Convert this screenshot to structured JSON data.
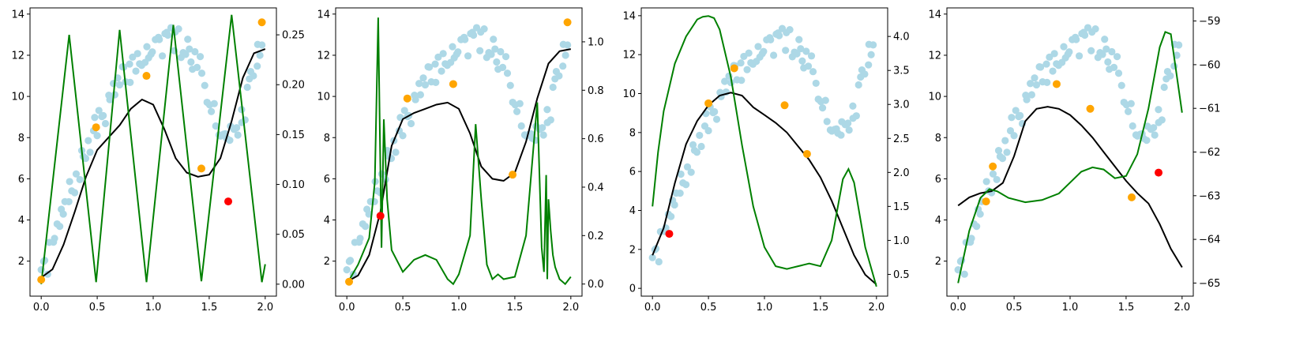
{
  "colors": {
    "observed_points": "#add8e6",
    "selected_points": "#ffa500",
    "next_point": "#ff0000",
    "mean_curve": "#000000",
    "acquisition_curve": "#008000"
  },
  "chart_data": [
    {
      "type": "scatter+line",
      "xlim": [
        -0.1,
        2.1
      ],
      "xticks": [
        0.0,
        0.5,
        1.0,
        1.5,
        2.0
      ],
      "xtick_labels": [
        "0.0",
        "0.5",
        "1.0",
        "1.5",
        "2.0"
      ],
      "ylim": [
        0.3,
        14.3
      ],
      "yticks": [
        2,
        4,
        6,
        8,
        10,
        12,
        14
      ],
      "ytick_labels": [
        "2",
        "4",
        "6",
        "8",
        "10",
        "12",
        "14"
      ],
      "y2lim": [
        -0.012,
        0.277
      ],
      "y2ticks": [
        0.0,
        0.05,
        0.1,
        0.15,
        0.2,
        0.25
      ],
      "y2tick_labels": [
        "0.00",
        "0.05",
        "0.10",
        "0.15",
        "0.20",
        "0.25"
      ],
      "orange_points": {
        "x": [
          0.0,
          0.49,
          0.94,
          1.43,
          1.97
        ],
        "y": [
          1.1,
          8.5,
          11.0,
          6.5,
          13.6
        ]
      },
      "red_point": {
        "x": [
          1.67
        ],
        "y": [
          4.9
        ]
      },
      "mean_curve": {
        "x": [
          0.0,
          0.1,
          0.2,
          0.3,
          0.4,
          0.5,
          0.6,
          0.7,
          0.8,
          0.9,
          1.0,
          1.1,
          1.2,
          1.3,
          1.4,
          1.5,
          1.6,
          1.7,
          1.8,
          1.9,
          2.0
        ],
        "y": [
          1.2,
          1.6,
          2.8,
          4.4,
          6.1,
          7.4,
          8.0,
          8.6,
          9.4,
          9.85,
          9.6,
          8.4,
          7.0,
          6.3,
          6.1,
          6.2,
          7.0,
          8.8,
          10.9,
          12.1,
          12.3
        ]
      },
      "acquisition_curve": {
        "x": [
          0.0,
          0.25,
          0.49,
          0.7,
          0.94,
          1.18,
          1.43,
          1.7,
          1.97,
          2.0
        ],
        "y": [
          0.0,
          0.25,
          0.002,
          0.255,
          0.002,
          0.26,
          0.003,
          0.27,
          0.002,
          0.02
        ]
      }
    },
    {
      "type": "scatter+line",
      "xlim": [
        -0.1,
        2.1
      ],
      "xticks": [
        0.0,
        0.5,
        1.0,
        1.5,
        2.0
      ],
      "xtick_labels": [
        "0.0",
        "0.5",
        "1.0",
        "1.5",
        "2.0"
      ],
      "ylim": [
        0.3,
        14.3
      ],
      "yticks": [
        2,
        4,
        6,
        8,
        10,
        12,
        14
      ],
      "ytick_labels": [
        "2",
        "4",
        "6",
        "8",
        "10",
        "12",
        "14"
      ],
      "y2lim": [
        -0.05,
        1.14
      ],
      "y2ticks": [
        0.0,
        0.2,
        0.4,
        0.6,
        0.8,
        1.0
      ],
      "y2tick_labels": [
        "0.0",
        "0.2",
        "0.4",
        "0.6",
        "0.8",
        "1.0"
      ],
      "orange_points": {
        "x": [
          0.02,
          0.54,
          0.95,
          1.48,
          1.97
        ],
        "y": [
          1.0,
          9.9,
          10.6,
          6.2,
          13.6
        ]
      },
      "red_point": {
        "x": [
          0.3
        ],
        "y": [
          4.2
        ]
      },
      "mean_curve": {
        "x": [
          0.0,
          0.1,
          0.2,
          0.3,
          0.4,
          0.5,
          0.6,
          0.7,
          0.8,
          0.9,
          1.0,
          1.1,
          1.2,
          1.3,
          1.4,
          1.5,
          1.6,
          1.7,
          1.8,
          1.9,
          2.0
        ],
        "y": [
          1.0,
          1.3,
          2.3,
          4.4,
          7.6,
          8.9,
          9.2,
          9.4,
          9.6,
          9.7,
          9.4,
          8.2,
          6.6,
          6.0,
          5.9,
          6.3,
          7.8,
          9.9,
          11.6,
          12.2,
          12.3
        ]
      },
      "acquisition_curve": {
        "x": [
          0.0,
          0.1,
          0.2,
          0.25,
          0.28,
          0.31,
          0.33,
          0.36,
          0.4,
          0.5,
          0.6,
          0.7,
          0.8,
          0.9,
          0.95,
          1.0,
          1.1,
          1.15,
          1.2,
          1.25,
          1.3,
          1.35,
          1.4,
          1.5,
          1.6,
          1.7,
          1.74,
          1.76,
          1.78,
          1.79,
          1.8,
          1.82,
          1.84,
          1.86,
          1.9,
          1.95,
          2.0
        ],
        "y": [
          0.0,
          0.08,
          0.19,
          0.42,
          1.1,
          0.15,
          0.68,
          0.35,
          0.14,
          0.05,
          0.1,
          0.12,
          0.1,
          0.02,
          0.0,
          0.04,
          0.2,
          0.66,
          0.35,
          0.08,
          0.02,
          0.04,
          0.02,
          0.03,
          0.2,
          0.75,
          0.15,
          0.05,
          0.45,
          0.02,
          0.35,
          0.22,
          0.12,
          0.07,
          0.02,
          0.0,
          0.03
        ]
      }
    },
    {
      "type": "scatter+line",
      "xlim": [
        -0.1,
        2.1
      ],
      "xticks": [
        0.0,
        0.5,
        1.0,
        1.5,
        2.0
      ],
      "xtick_labels": [
        "0.0",
        "0.5",
        "1.0",
        "1.5",
        "2.0"
      ],
      "ylim": [
        -0.4,
        14.4
      ],
      "yticks": [
        0,
        2,
        4,
        6,
        8,
        10,
        12,
        14
      ],
      "ytick_labels": [
        "0",
        "2",
        "4",
        "6",
        "8",
        "10",
        "12",
        "14"
      ],
      "y2lim": [
        0.18,
        4.42
      ],
      "y2ticks": [
        0.5,
        1.0,
        1.5,
        2.0,
        2.5,
        3.0,
        3.5,
        4.0
      ],
      "y2tick_labels": [
        "0.5",
        "1.0",
        "1.5",
        "2.0",
        "2.5",
        "3.0",
        "3.5",
        "4.0"
      ],
      "orange_points": {
        "x": [
          0.5,
          0.73,
          1.18,
          1.38
        ],
        "y": [
          9.5,
          11.3,
          9.4,
          6.9
        ]
      },
      "red_point": {
        "x": [
          0.15
        ],
        "y": [
          2.8
        ]
      },
      "mean_curve": {
        "x": [
          0.0,
          0.1,
          0.2,
          0.3,
          0.4,
          0.5,
          0.6,
          0.7,
          0.8,
          0.9,
          1.0,
          1.1,
          1.2,
          1.3,
          1.4,
          1.5,
          1.6,
          1.7,
          1.8,
          1.9,
          2.0
        ],
        "y": [
          1.7,
          3.1,
          5.4,
          7.4,
          8.6,
          9.4,
          9.9,
          10.05,
          9.9,
          9.3,
          8.9,
          8.5,
          8.0,
          7.3,
          6.6,
          5.7,
          4.5,
          3.1,
          1.7,
          0.7,
          0.2
        ]
      },
      "acquisition_curve": {
        "x": [
          0.0,
          0.05,
          0.1,
          0.2,
          0.3,
          0.4,
          0.45,
          0.5,
          0.55,
          0.6,
          0.7,
          0.8,
          0.9,
          1.0,
          1.1,
          1.2,
          1.25,
          1.3,
          1.4,
          1.5,
          1.6,
          1.7,
          1.75,
          1.8,
          1.9,
          2.0
        ],
        "y": [
          1.5,
          2.3,
          2.9,
          3.6,
          4.0,
          4.25,
          4.29,
          4.3,
          4.27,
          4.1,
          3.4,
          2.4,
          1.5,
          0.9,
          0.62,
          0.58,
          0.6,
          0.62,
          0.66,
          0.62,
          1.0,
          1.9,
          2.05,
          1.85,
          0.9,
          0.32
        ]
      }
    },
    {
      "type": "scatter+line",
      "xlim": [
        -0.1,
        2.1
      ],
      "xticks": [
        0.0,
        0.5,
        1.0,
        1.5,
        2.0
      ],
      "xtick_labels": [
        "0.0",
        "0.5",
        "1.0",
        "1.5",
        "2.0"
      ],
      "ylim": [
        0.3,
        14.3
      ],
      "yticks": [
        2,
        4,
        6,
        8,
        10,
        12,
        14
      ],
      "ytick_labels": [
        "2",
        "4",
        "6",
        "8",
        "10",
        "12",
        "14"
      ],
      "y2lim": [
        -65.3,
        -58.7
      ],
      "y2ticks": [
        -65,
        -64,
        -63,
        -62,
        -61,
        -60,
        -59
      ],
      "y2tick_labels": [
        "−65",
        "−64",
        "−63",
        "−62",
        "−61",
        "−60",
        "−59"
      ],
      "orange_points": {
        "x": [
          0.25,
          0.31,
          0.88,
          1.18,
          1.55
        ],
        "y": [
          4.9,
          6.6,
          10.6,
          9.4,
          5.1
        ]
      },
      "red_point": {
        "x": [
          1.79
        ],
        "y": [
          6.3
        ]
      },
      "mean_curve": {
        "x": [
          0.0,
          0.1,
          0.2,
          0.3,
          0.4,
          0.5,
          0.6,
          0.7,
          0.8,
          0.9,
          1.0,
          1.1,
          1.2,
          1.3,
          1.4,
          1.5,
          1.6,
          1.7,
          1.8,
          1.9,
          2.0
        ],
        "y": [
          4.7,
          5.1,
          5.3,
          5.4,
          5.8,
          7.1,
          8.8,
          9.4,
          9.5,
          9.4,
          9.1,
          8.6,
          8.0,
          7.3,
          6.6,
          5.9,
          5.3,
          4.8,
          3.8,
          2.6,
          1.7
        ]
      },
      "acquisition_curve": {
        "x": [
          0.0,
          0.1,
          0.2,
          0.28,
          0.35,
          0.45,
          0.6,
          0.75,
          0.9,
          1.0,
          1.1,
          1.2,
          1.3,
          1.4,
          1.5,
          1.6,
          1.7,
          1.8,
          1.85,
          1.9,
          1.95,
          2.0
        ],
        "y": [
          -65.0,
          -63.8,
          -63.05,
          -62.85,
          -62.9,
          -63.05,
          -63.15,
          -63.1,
          -62.95,
          -62.7,
          -62.45,
          -62.35,
          -62.4,
          -62.6,
          -62.55,
          -62.05,
          -61.0,
          -59.6,
          -59.25,
          -59.3,
          -60.2,
          -61.1
        ]
      }
    }
  ]
}
